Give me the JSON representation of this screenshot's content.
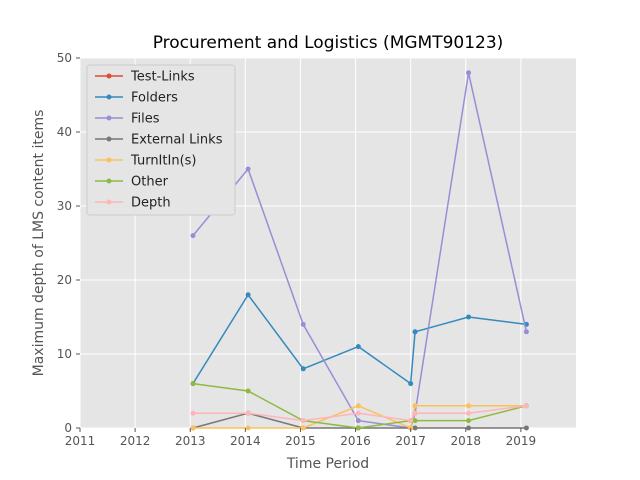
{
  "chart_data": {
    "type": "line",
    "title": "Procurement and Logistics (MGMT90123)",
    "xlabel": "Time Period",
    "ylabel": "Maximum depth of LMS content items",
    "xlim": [
      2011.0,
      2020.0
    ],
    "ylim": [
      0,
      50
    ],
    "x_ticks": [
      "2011",
      "2012",
      "2013",
      "2014",
      "2015",
      "2016",
      "2017",
      "2018",
      "2019"
    ],
    "y_ticks": [
      "0",
      "10",
      "20",
      "30",
      "40",
      "50"
    ],
    "grid": true,
    "legend_position": "upper-left",
    "x": [
      2013.05,
      2014.05,
      2015.05,
      2016.05,
      2017.0,
      2017.08,
      2018.05,
      2019.1
    ],
    "series": [
      {
        "name": "Test-Links",
        "color": "#E24A33",
        "values": [
          null,
          null,
          null,
          null,
          null,
          null,
          null,
          null
        ]
      },
      {
        "name": "Folders",
        "color": "#348ABD",
        "values": [
          6,
          18,
          8,
          11,
          6,
          13,
          15,
          14
        ]
      },
      {
        "name": "Files",
        "color": "#988ED5",
        "values": [
          26,
          35,
          14,
          1,
          0,
          2,
          48,
          13
        ]
      },
      {
        "name": "External Links",
        "color": "#777777",
        "values": [
          0,
          2,
          0,
          0,
          0,
          0,
          0,
          0
        ]
      },
      {
        "name": "TurnItIn(s)",
        "color": "#FBC15E",
        "values": [
          0,
          0,
          0,
          3,
          0,
          3,
          3,
          3
        ]
      },
      {
        "name": "Other",
        "color": "#8EBA42",
        "values": [
          6,
          5,
          1,
          0,
          1,
          1,
          1,
          3
        ]
      },
      {
        "name": "Depth",
        "color": "#FFB5B8",
        "values": [
          2,
          2,
          1,
          2,
          1,
          2,
          2,
          3
        ]
      }
    ]
  }
}
